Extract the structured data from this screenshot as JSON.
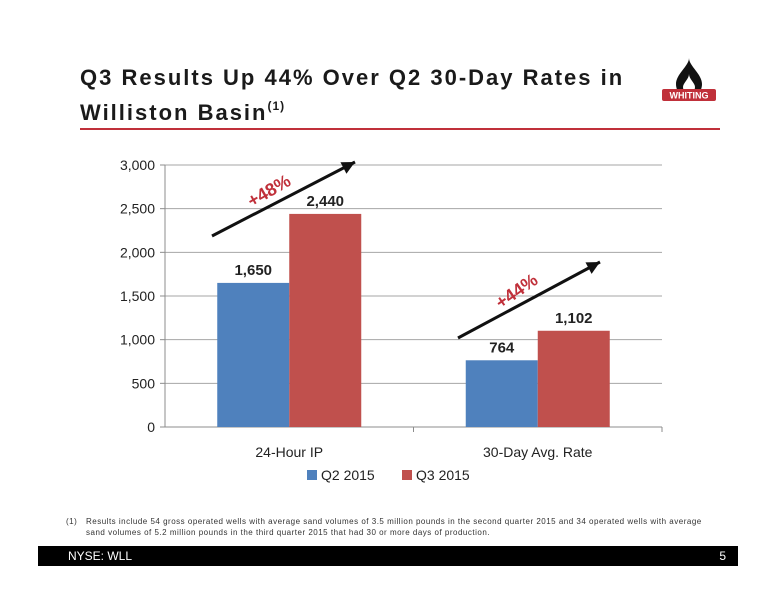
{
  "slide": {
    "title_main": "Q3 Results Up 44%  Over Q2 30-Day Rates in Williston Basin",
    "title_sup": "(1)",
    "logo_text": "WHITING",
    "footnote_number": "(1)",
    "footnote_text": "Results include 54 gross operated wells with average sand volumes of 3.5 million pounds in the second quarter 2015 and 34 operated wells with average sand volumes of 5.2 million pounds in the third quarter 2015 that had 30 or more days of production.",
    "footer_ticker": "NYSE:  WLL",
    "page_number": "5"
  },
  "colors": {
    "q2": "#4f81bd",
    "q3": "#c0504d",
    "accent_red": "#c0303a"
  },
  "chart_data": {
    "type": "bar",
    "categories": [
      "24-Hour IP",
      "30-Day Avg. Rate"
    ],
    "series": [
      {
        "name": "Q2 2015",
        "values": [
          1650,
          764
        ],
        "labels": [
          "1,650",
          "764"
        ]
      },
      {
        "name": "Q3 2015",
        "values": [
          2440,
          1102
        ],
        "labels": [
          "2,440",
          "1,102"
        ]
      }
    ],
    "ylim": [
      0,
      3000
    ],
    "yticks": [
      0,
      500,
      1000,
      1500,
      2000,
      2500,
      3000
    ],
    "ytick_labels": [
      "0",
      "500",
      "1,000",
      "1,500",
      "2,000",
      "2,500",
      "3,000"
    ],
    "grid": true,
    "legend": "bottom",
    "annotations": [
      "+48%",
      "+44%"
    ]
  }
}
